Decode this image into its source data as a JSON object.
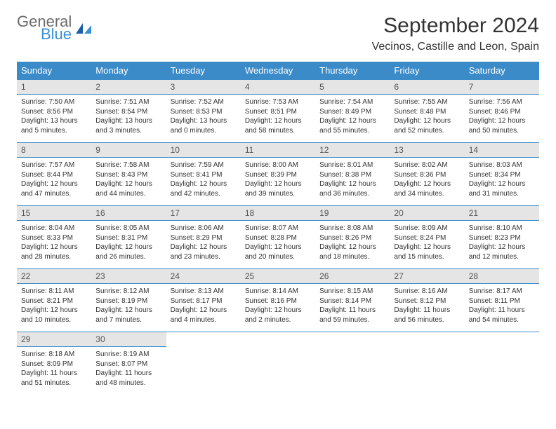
{
  "brand": {
    "name1": "General",
    "name2": "Blue"
  },
  "title": "September 2024",
  "location": "Vecinos, Castille and Leon, Spain",
  "daysOfWeek": [
    "Sunday",
    "Monday",
    "Tuesday",
    "Wednesday",
    "Thursday",
    "Friday",
    "Saturday"
  ],
  "colors": {
    "headerBar": "#3b8bc9",
    "dayNumBg": "#e5e5e5",
    "text": "#333333",
    "logoGray": "#6b6b6b",
    "logoBlue": "#3a8fd6"
  },
  "weeks": [
    [
      {
        "n": "1",
        "sr": "7:50 AM",
        "ss": "8:56 PM",
        "dl": "13 hours and 5 minutes."
      },
      {
        "n": "2",
        "sr": "7:51 AM",
        "ss": "8:54 PM",
        "dl": "13 hours and 3 minutes."
      },
      {
        "n": "3",
        "sr": "7:52 AM",
        "ss": "8:53 PM",
        "dl": "13 hours and 0 minutes."
      },
      {
        "n": "4",
        "sr": "7:53 AM",
        "ss": "8:51 PM",
        "dl": "12 hours and 58 minutes."
      },
      {
        "n": "5",
        "sr": "7:54 AM",
        "ss": "8:49 PM",
        "dl": "12 hours and 55 minutes."
      },
      {
        "n": "6",
        "sr": "7:55 AM",
        "ss": "8:48 PM",
        "dl": "12 hours and 52 minutes."
      },
      {
        "n": "7",
        "sr": "7:56 AM",
        "ss": "8:46 PM",
        "dl": "12 hours and 50 minutes."
      }
    ],
    [
      {
        "n": "8",
        "sr": "7:57 AM",
        "ss": "8:44 PM",
        "dl": "12 hours and 47 minutes."
      },
      {
        "n": "9",
        "sr": "7:58 AM",
        "ss": "8:43 PM",
        "dl": "12 hours and 44 minutes."
      },
      {
        "n": "10",
        "sr": "7:59 AM",
        "ss": "8:41 PM",
        "dl": "12 hours and 42 minutes."
      },
      {
        "n": "11",
        "sr": "8:00 AM",
        "ss": "8:39 PM",
        "dl": "12 hours and 39 minutes."
      },
      {
        "n": "12",
        "sr": "8:01 AM",
        "ss": "8:38 PM",
        "dl": "12 hours and 36 minutes."
      },
      {
        "n": "13",
        "sr": "8:02 AM",
        "ss": "8:36 PM",
        "dl": "12 hours and 34 minutes."
      },
      {
        "n": "14",
        "sr": "8:03 AM",
        "ss": "8:34 PM",
        "dl": "12 hours and 31 minutes."
      }
    ],
    [
      {
        "n": "15",
        "sr": "8:04 AM",
        "ss": "8:33 PM",
        "dl": "12 hours and 28 minutes."
      },
      {
        "n": "16",
        "sr": "8:05 AM",
        "ss": "8:31 PM",
        "dl": "12 hours and 26 minutes."
      },
      {
        "n": "17",
        "sr": "8:06 AM",
        "ss": "8:29 PM",
        "dl": "12 hours and 23 minutes."
      },
      {
        "n": "18",
        "sr": "8:07 AM",
        "ss": "8:28 PM",
        "dl": "12 hours and 20 minutes."
      },
      {
        "n": "19",
        "sr": "8:08 AM",
        "ss": "8:26 PM",
        "dl": "12 hours and 18 minutes."
      },
      {
        "n": "20",
        "sr": "8:09 AM",
        "ss": "8:24 PM",
        "dl": "12 hours and 15 minutes."
      },
      {
        "n": "21",
        "sr": "8:10 AM",
        "ss": "8:23 PM",
        "dl": "12 hours and 12 minutes."
      }
    ],
    [
      {
        "n": "22",
        "sr": "8:11 AM",
        "ss": "8:21 PM",
        "dl": "12 hours and 10 minutes."
      },
      {
        "n": "23",
        "sr": "8:12 AM",
        "ss": "8:19 PM",
        "dl": "12 hours and 7 minutes."
      },
      {
        "n": "24",
        "sr": "8:13 AM",
        "ss": "8:17 PM",
        "dl": "12 hours and 4 minutes."
      },
      {
        "n": "25",
        "sr": "8:14 AM",
        "ss": "8:16 PM",
        "dl": "12 hours and 2 minutes."
      },
      {
        "n": "26",
        "sr": "8:15 AM",
        "ss": "8:14 PM",
        "dl": "11 hours and 59 minutes."
      },
      {
        "n": "27",
        "sr": "8:16 AM",
        "ss": "8:12 PM",
        "dl": "11 hours and 56 minutes."
      },
      {
        "n": "28",
        "sr": "8:17 AM",
        "ss": "8:11 PM",
        "dl": "11 hours and 54 minutes."
      }
    ],
    [
      {
        "n": "29",
        "sr": "8:18 AM",
        "ss": "8:09 PM",
        "dl": "11 hours and 51 minutes."
      },
      {
        "n": "30",
        "sr": "8:19 AM",
        "ss": "8:07 PM",
        "dl": "11 hours and 48 minutes."
      },
      null,
      null,
      null,
      null,
      null
    ]
  ],
  "labels": {
    "sunrise": "Sunrise: ",
    "sunset": "Sunset: ",
    "daylight": "Daylight: "
  }
}
